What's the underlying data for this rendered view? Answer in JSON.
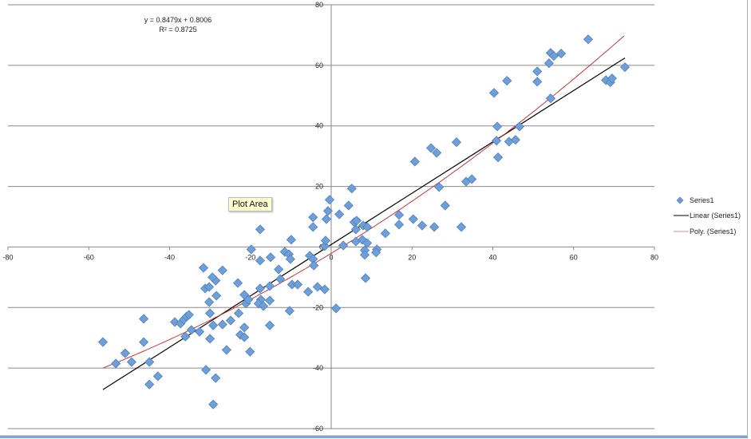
{
  "chart_data": {
    "type": "scatter",
    "title": "",
    "xlabel": "",
    "ylabel": "",
    "xlim": [
      -80,
      80
    ],
    "ylim": [
      -60,
      80
    ],
    "xticks": [
      -80,
      -60,
      -40,
      -20,
      0,
      20,
      40,
      60,
      80
    ],
    "yticks": [
      -60,
      -40,
      -20,
      0,
      20,
      40,
      60,
      80
    ],
    "grid": "horizontal",
    "legend_position": "right",
    "legend": [
      "Series1",
      "Linear (Series1)",
      "Poly. (Series1)"
    ],
    "annotations": {
      "equation": "y = 0.8479x + 0.8006",
      "r_squared": "R² = 0.8725"
    },
    "trendlines": {
      "linear": {
        "name": "Linear (Series1)",
        "slope": 0.8479,
        "intercept": 0.8006,
        "x_range": [
          -56.5,
          72.7
        ],
        "color": "#000000"
      },
      "poly": {
        "name": "Poly. (Series1)",
        "coeffs": [
          0.00248,
          0.811,
          -2.1
        ],
        "x_range": [
          -56.5,
          72.7
        ],
        "color": "#cc2222"
      }
    },
    "series": [
      {
        "name": "Series1",
        "color": "#6f9fd8",
        "points": [
          [
            -56.5,
            -31.4
          ],
          [
            -53.3,
            -38.5
          ],
          [
            -51.0,
            -35.1
          ],
          [
            -49.4,
            -38.0
          ],
          [
            -46.4,
            -23.7
          ],
          [
            -46.4,
            -31.4
          ],
          [
            -45.0,
            -38.0
          ],
          [
            -45.0,
            -45.4
          ],
          [
            -42.9,
            -42.7
          ],
          [
            -38.7,
            -24.8
          ],
          [
            -37.3,
            -25.3
          ],
          [
            -36.5,
            -24.0
          ],
          [
            -35.8,
            -23.0
          ],
          [
            -35.2,
            -22.4
          ],
          [
            -36.1,
            -29.6
          ],
          [
            -34.6,
            -27.4
          ],
          [
            -32.6,
            -28.0
          ],
          [
            -31.6,
            -6.9
          ],
          [
            -31.2,
            -13.7
          ],
          [
            -30.2,
            -13.2
          ],
          [
            -29.2,
            -25.9
          ],
          [
            -28.6,
            -11.1
          ],
          [
            -28.4,
            -16.1
          ],
          [
            -31.0,
            -40.6
          ],
          [
            -30.2,
            -18.2
          ],
          [
            -30.0,
            -30.3
          ],
          [
            -29.4,
            -10.0
          ],
          [
            -28.6,
            -43.3
          ],
          [
            -29.2,
            -52.0
          ],
          [
            -30.0,
            -21.9
          ],
          [
            -26.9,
            -25.6
          ],
          [
            -26.9,
            -7.7
          ],
          [
            -25.9,
            -34.0
          ],
          [
            -24.9,
            -24.3
          ],
          [
            -23.1,
            -11.9
          ],
          [
            -22.9,
            -21.9
          ],
          [
            -22.5,
            -29.0
          ],
          [
            -21.5,
            -29.8
          ],
          [
            -21.5,
            -15.8
          ],
          [
            -21.5,
            -26.6
          ],
          [
            -21.1,
            -18.7
          ],
          [
            -20.5,
            -17.4
          ],
          [
            -20.1,
            -34.6
          ],
          [
            -19.8,
            -0.8
          ],
          [
            -17.6,
            5.8
          ],
          [
            -17.6,
            -4.5
          ],
          [
            -17.4,
            -17.4
          ],
          [
            -18.0,
            -18.7
          ],
          [
            -17.6,
            -13.7
          ],
          [
            -16.8,
            -19.5
          ],
          [
            -15.2,
            -25.9
          ],
          [
            -15.0,
            -3.4
          ],
          [
            -15.2,
            -12.9
          ],
          [
            -15.2,
            -17.7
          ],
          [
            -13.0,
            -7.4
          ],
          [
            -12.6,
            -10.6
          ],
          [
            -11.5,
            -1.6
          ],
          [
            -10.5,
            -2.4
          ],
          [
            -10.1,
            -4.0
          ],
          [
            -10.3,
            -21.1
          ],
          [
            -9.7,
            -12.4
          ],
          [
            -8.3,
            -12.4
          ],
          [
            -9.9,
            2.4
          ],
          [
            -5.7,
            -14.8
          ],
          [
            -4.5,
            9.8
          ],
          [
            -4.5,
            6.6
          ],
          [
            -5.3,
            -2.9
          ],
          [
            -4.5,
            -4.0
          ],
          [
            -4.3,
            -6.1
          ],
          [
            -3.4,
            -13.2
          ],
          [
            -1.6,
            0.3
          ],
          [
            -1.6,
            -14.0
          ],
          [
            -1.4,
            2.1
          ],
          [
            -1.2,
            9.2
          ],
          [
            -0.8,
            11.9
          ],
          [
            -0.4,
            15.6
          ],
          [
            1.2,
            -20.3
          ],
          [
            2.0,
            10.8
          ],
          [
            3.0,
            0.5
          ],
          [
            4.3,
            13.7
          ],
          [
            5.1,
            19.3
          ],
          [
            5.7,
            8.2
          ],
          [
            6.3,
            8.7
          ],
          [
            6.1,
            1.8
          ],
          [
            6.1,
            5.8
          ],
          [
            7.7,
            2.4
          ],
          [
            7.9,
            7.1
          ],
          [
            8.3,
            -1.1
          ],
          [
            8.5,
            -10.3
          ],
          [
            8.3,
            -2.6
          ],
          [
            8.9,
            6.6
          ],
          [
            8.9,
            1.3
          ],
          [
            11.3,
            -0.8
          ],
          [
            11.1,
            -1.8
          ],
          [
            13.4,
            4.5
          ],
          [
            16.8,
            10.6
          ],
          [
            16.8,
            7.4
          ],
          [
            20.3,
            9.2
          ],
          [
            20.7,
            28.2
          ],
          [
            22.5,
            7.1
          ],
          [
            24.7,
            32.7
          ],
          [
            26.1,
            31.1
          ],
          [
            26.7,
            19.8
          ],
          [
            25.5,
            6.6
          ],
          [
            28.2,
            13.7
          ],
          [
            31.0,
            34.6
          ],
          [
            32.2,
            6.6
          ],
          [
            33.4,
            21.6
          ],
          [
            34.8,
            22.4
          ],
          [
            40.3,
            50.9
          ],
          [
            41.1,
            39.8
          ],
          [
            40.9,
            35.1
          ],
          [
            41.3,
            29.6
          ],
          [
            43.5,
            54.9
          ],
          [
            44.0,
            34.8
          ],
          [
            45.6,
            35.4
          ],
          [
            46.6,
            39.8
          ],
          [
            51.0,
            54.6
          ],
          [
            51.0,
            58.0
          ],
          [
            53.9,
            60.7
          ],
          [
            54.3,
            64.1
          ],
          [
            55.1,
            63.1
          ],
          [
            56.9,
            63.9
          ],
          [
            54.3,
            49.1
          ],
          [
            63.6,
            68.6
          ],
          [
            68.0,
            55.1
          ],
          [
            69.1,
            54.4
          ],
          [
            69.5,
            55.7
          ],
          [
            72.7,
            59.4
          ]
        ]
      }
    ]
  },
  "tooltip": "Plot Area"
}
